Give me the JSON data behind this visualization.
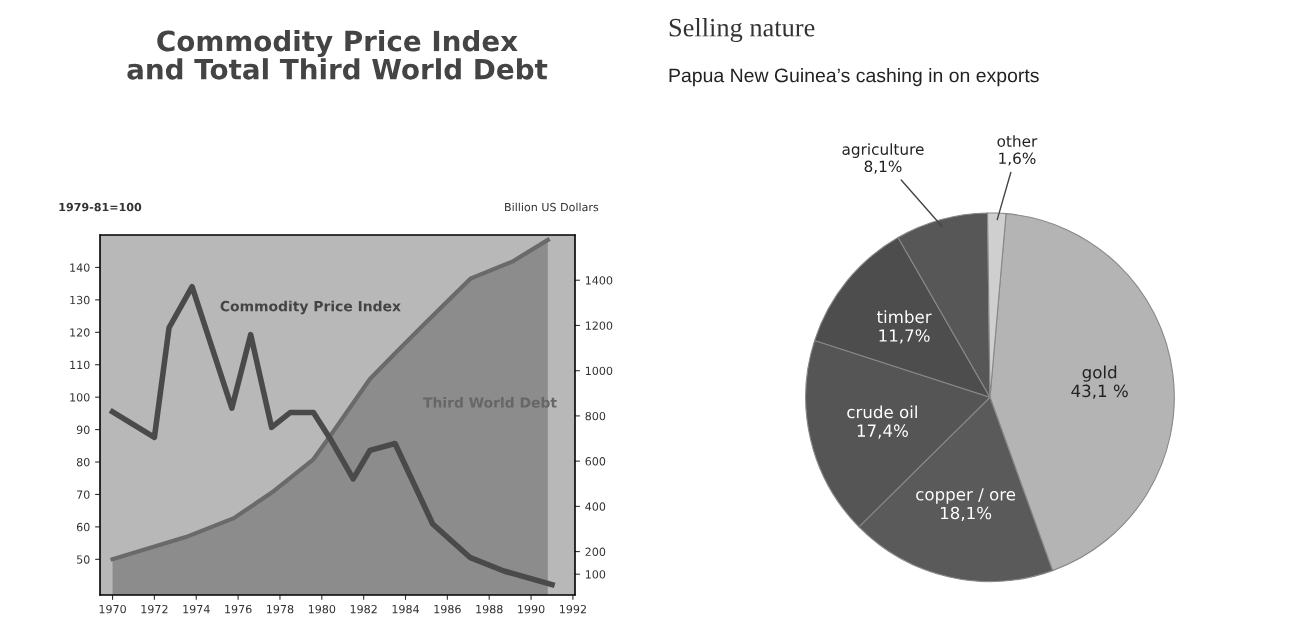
{
  "chart_data": [
    {
      "type": "line",
      "title": "Commodity Price Index\nand Total Third World Debt",
      "ylabel": "1979-81=100",
      "y2label": "Billion US Dollars",
      "xlim": [
        1969.4,
        1992.1
      ],
      "xticks": [
        1970,
        1972,
        1974,
        1976,
        1978,
        1980,
        1982,
        1984,
        1986,
        1988,
        1990,
        1992
      ],
      "ylim": [
        39,
        150
      ],
      "yticks": [
        50,
        60,
        70,
        80,
        90,
        100,
        110,
        120,
        130,
        140
      ],
      "y2lim": [
        8,
        1600
      ],
      "y2ticks": [
        100,
        200,
        400,
        600,
        800,
        1000,
        1200,
        1400
      ],
      "grid": false,
      "legend": false,
      "marker": "none",
      "line_style": "solid",
      "series": [
        {
          "name": "Third World Debt",
          "type": "area",
          "axis": "y2",
          "color": "#8c8c8c",
          "x": [
            1970,
            1973.5,
            1975.8,
            1977.7,
            1979.6,
            1980.4,
            1982.3,
            1983.4,
            1985.0,
            1987.1,
            1989.1,
            1990.8
          ],
          "values": [
            166,
            264,
            348,
            467,
            608,
            711,
            963,
            1067,
            1215,
            1407,
            1482,
            1578
          ]
        },
        {
          "name": "Commodity Price Index",
          "type": "line",
          "color": "#4a4a4a",
          "x": [
            1970,
            1972,
            1972.7,
            1973.8,
            1975.7,
            1976.6,
            1977.6,
            1978.5,
            1979.6,
            1980.4,
            1981.5,
            1982.3,
            1983.5,
            1985.3,
            1987.1,
            1988.7,
            1991.0
          ],
          "values": [
            95.5,
            87.6,
            121.4,
            134.1,
            96.6,
            119.3,
            90.7,
            95.3,
            95.3,
            87.2,
            74.8,
            83.6,
            85.7,
            60.9,
            50.5,
            46.4,
            42.2
          ]
        }
      ]
    },
    {
      "type": "pie",
      "title": "Selling nature",
      "subtitle": "Papua New Guinea’s cashing in on exports",
      "categories": [
        "gold",
        "copper / ore",
        "crude oil",
        "timber",
        "agriculture",
        "other"
      ],
      "values": [
        43.1,
        18.1,
        17.4,
        11.7,
        8.1,
        1.6
      ],
      "value_labels": [
        "43,1 %",
        "18,1%",
        "17,4%",
        "11,7%",
        "8,1%",
        "1,6%"
      ],
      "colors": [
        "#b4b4b4",
        "#5a5a5a",
        "#555555",
        "#4d4d4d",
        "#575757",
        "#cfcfcf"
      ]
    }
  ]
}
